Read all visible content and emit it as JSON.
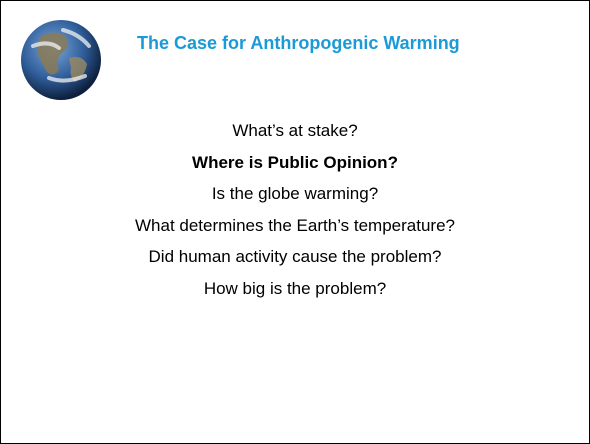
{
  "header": {
    "title": "The Case for Anthropogenic Warming"
  },
  "items": [
    {
      "text": "What’s at stake?",
      "bold": false
    },
    {
      "text": "Where is Public Opinion?",
      "bold": true
    },
    {
      "text": "Is the globe warming?",
      "bold": false
    },
    {
      "text": "What determines the Earth’s temperature?",
      "bold": false
    },
    {
      "text": "Did human activity cause the problem?",
      "bold": false
    },
    {
      "text": "How big is the problem?",
      "bold": false
    }
  ]
}
